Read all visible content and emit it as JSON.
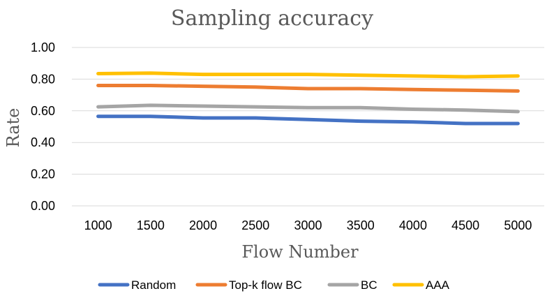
{
  "chart_data": {
    "type": "line",
    "title": "Sampling accuracy",
    "xlabel": "Flow Number",
    "ylabel": "Rate",
    "categories": [
      "1000",
      "1500",
      "2000",
      "2500",
      "3000",
      "3500",
      "4000",
      "4500",
      "5000"
    ],
    "y_ticks": [
      "0.00",
      "0.20",
      "0.40",
      "0.60",
      "0.80",
      "1.00"
    ],
    "ylim": [
      0,
      1
    ],
    "grid": true,
    "legend_position": "bottom",
    "series": [
      {
        "name": "Random",
        "color": "#4472c4",
        "values": [
          0.565,
          0.565,
          0.555,
          0.555,
          0.545,
          0.535,
          0.53,
          0.52,
          0.52
        ]
      },
      {
        "name": "Top-k flow BC",
        "color": "#ed7d31",
        "values": [
          0.76,
          0.76,
          0.755,
          0.75,
          0.74,
          0.74,
          0.735,
          0.73,
          0.725
        ]
      },
      {
        "name": "BC",
        "color": "#a5a5a5",
        "values": [
          0.625,
          0.635,
          0.63,
          0.625,
          0.62,
          0.62,
          0.61,
          0.605,
          0.595
        ]
      },
      {
        "name": "AAA",
        "color": "#ffc000",
        "values": [
          0.835,
          0.838,
          0.83,
          0.83,
          0.83,
          0.825,
          0.82,
          0.815,
          0.82
        ]
      }
    ]
  }
}
